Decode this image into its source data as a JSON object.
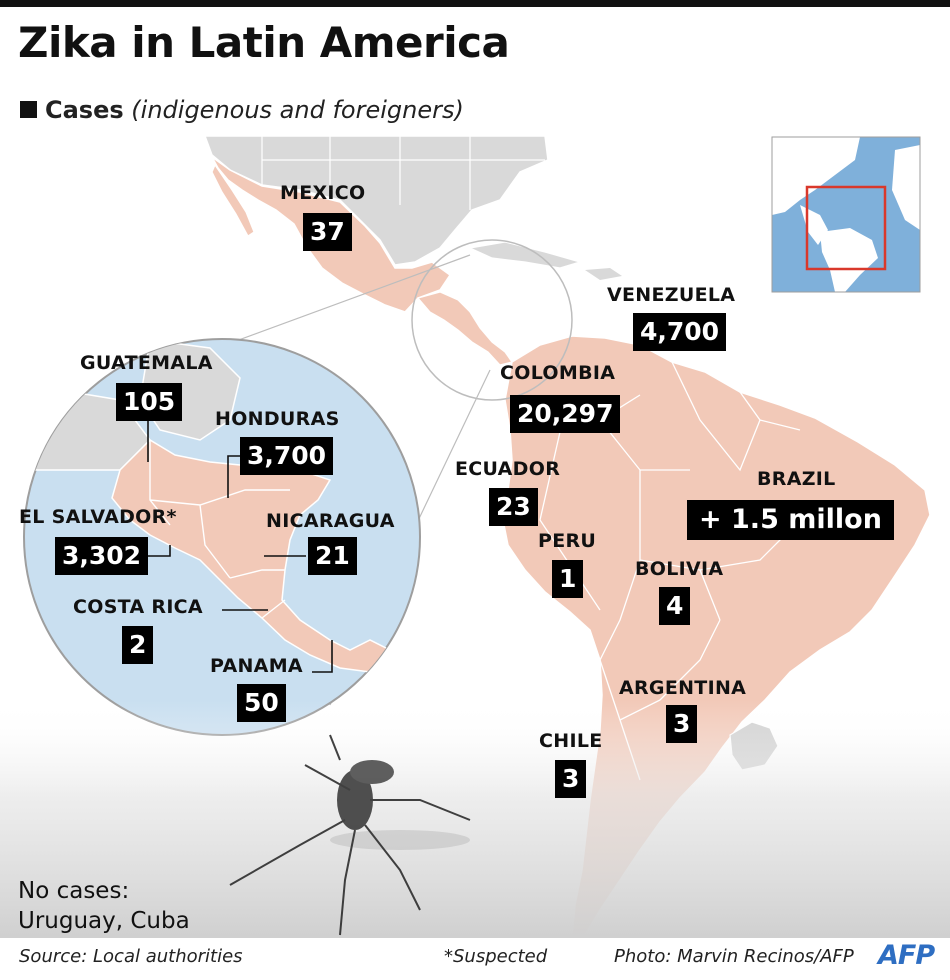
{
  "title": "Zika in Latin America",
  "subtitle": {
    "strong": "Cases",
    "italic": "(indigenous and foreigners)"
  },
  "countries": {
    "mexico": {
      "name": "MEXICO",
      "cases": "37"
    },
    "venezuela": {
      "name": "VENEZUELA",
      "cases": "4,700"
    },
    "colombia": {
      "name": "COLOMBIA",
      "cases": "20,297"
    },
    "ecuador": {
      "name": "ECUADOR",
      "cases": "23"
    },
    "peru": {
      "name": "PERU",
      "cases": "1"
    },
    "brazil": {
      "name": "BRAZIL",
      "cases": "+ 1.5 millon"
    },
    "bolivia": {
      "name": "BOLIVIA",
      "cases": "4"
    },
    "argentina": {
      "name": "ARGENTINA",
      "cases": "3"
    },
    "chile": {
      "name": "CHILE",
      "cases": "3"
    },
    "guatemala": {
      "name": "GUATEMALA",
      "cases": "105"
    },
    "honduras": {
      "name": "HONDURAS",
      "cases": "3,700"
    },
    "el_salvador": {
      "name": "EL SALVADOR*",
      "cases": "3,302"
    },
    "nicaragua": {
      "name": "NICARAGUA",
      "cases": "21"
    },
    "costa_rica": {
      "name": "COSTA RICA",
      "cases": "2"
    },
    "panama": {
      "name": "PANAMA",
      "cases": "50"
    }
  },
  "no_cases": {
    "heading": "No cases:",
    "list": "Uruguay, Cuba"
  },
  "footer": {
    "source": "Source: Local authorities",
    "note": "*Suspected",
    "photo": "Photo: Marvin Recinos/AFP",
    "logo": "AFP"
  },
  "colors": {
    "country_fill": "#f2c9b8",
    "other_land": "#d9d9d9",
    "water": "#c9dff0",
    "inset_ocean": "#7fb0da",
    "inset_highlight": "#d9382b",
    "label_box": "#000000"
  }
}
